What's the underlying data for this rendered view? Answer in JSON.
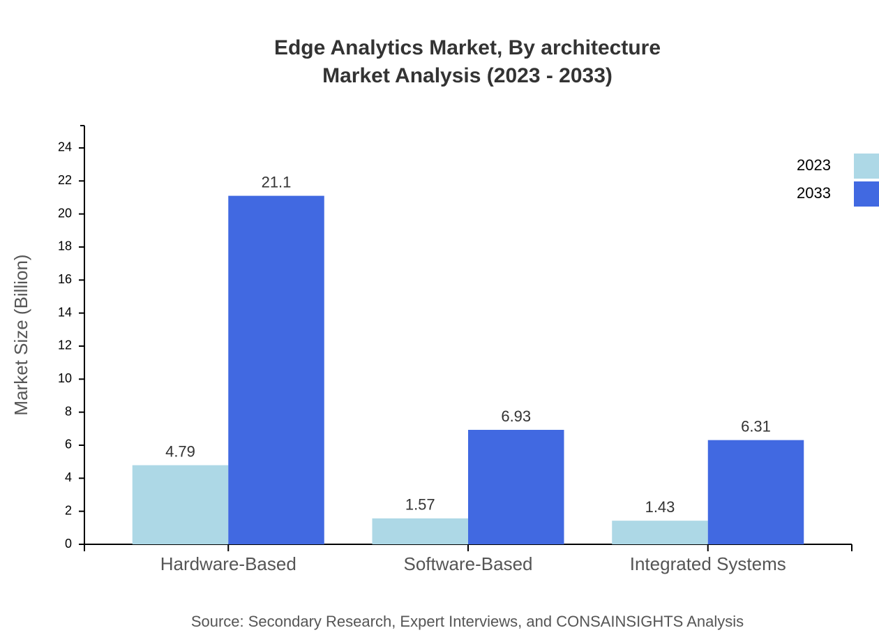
{
  "chart_data": {
    "type": "bar",
    "title": "Edge Analytics Market, By architecture",
    "subtitle": "Market Analysis (2023 - 2033)",
    "y_label": "Market Size (Billion)",
    "source": "Source: Secondary Research, Expert Interviews, and CONSAINSIGHTS Analysis",
    "categories": [
      "Hardware-Based",
      "Software-Based",
      "Integrated Systems"
    ],
    "series": [
      {
        "name": "2023",
        "color": "#add8e6",
        "values": [
          4.79,
          1.57,
          1.43
        ]
      },
      {
        "name": "2033",
        "color": "#4169e1",
        "values": [
          21.1,
          6.93,
          6.31
        ]
      }
    ],
    "ylim": [
      0,
      25.35
    ],
    "yticks": [
      0,
      2,
      4,
      6,
      8,
      10,
      12,
      14,
      16,
      18,
      20,
      22,
      24
    ],
    "legend": "top-right"
  }
}
